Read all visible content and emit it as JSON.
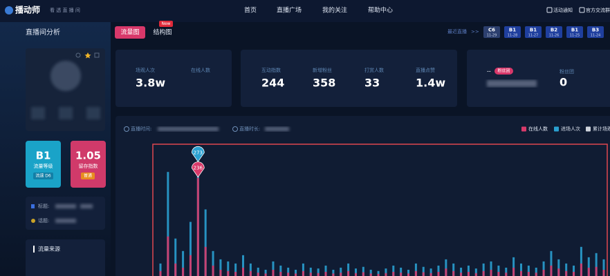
{
  "header": {
    "logo": "播动师",
    "slogan": "看 透 直 播 间",
    "nav": [
      "首页",
      "直播广场",
      "我的关注",
      "帮助中心"
    ],
    "actions": [
      "活动通知",
      "官方交流群"
    ]
  },
  "sidebar": {
    "title": "直播间分析",
    "level_card": {
      "value": "B1",
      "label": "流量等级",
      "tag": "流速 D6"
    },
    "retention_card": {
      "value": "1.05",
      "label": "留存指数",
      "tag": "普通"
    },
    "info": {
      "title_label": "标题:",
      "topic_label": "话题:"
    },
    "source_title": "流量来源"
  },
  "tabs": {
    "items": [
      "流量图",
      "结构图"
    ],
    "badge": "New"
  },
  "recent": {
    "label": "最近直播",
    "arrow": ">>",
    "sessions": [
      {
        "level": "C6",
        "date": "11-29"
      },
      {
        "level": "B1",
        "date": "11-28"
      },
      {
        "level": "B1",
        "date": "11-27"
      },
      {
        "level": "B2",
        "date": "11-26"
      },
      {
        "level": "B1",
        "date": "11-25"
      },
      {
        "level": "B3",
        "date": "11-24"
      }
    ]
  },
  "stats": {
    "viewers": [
      {
        "label": "场观人次",
        "value": "3.8w"
      },
      {
        "label": "在线人数"
      }
    ],
    "engagement": [
      {
        "label": "互动指数",
        "value": 244
      },
      {
        "label": "新增粉丝",
        "value": 358
      },
      {
        "label": "打赏人数",
        "value": 33
      },
      {
        "label": "直播点赞",
        "value": "1.4w"
      }
    ],
    "fans": {
      "level": "--",
      "badge": "粉丝团",
      "label": "粉丝团",
      "value": 0
    }
  },
  "chart": {
    "time_label": "直播时间:",
    "duration_label": "直播时长:",
    "extra_legend": "累计场观",
    "chart_data": {
      "type": "bar",
      "ylim": [
        0,
        315
      ],
      "series": [
        {
          "name": "在线人数",
          "color": "#d83a6a",
          "values": [
            12,
            95,
            30,
            20,
            50,
            236,
            70,
            25,
            15,
            12,
            10,
            20,
            12,
            8,
            6,
            15,
            10,
            8,
            6,
            12,
            8,
            7,
            10,
            6,
            8,
            12,
            7,
            9,
            6,
            5,
            7,
            10,
            8,
            6,
            12,
            9,
            7,
            10,
            18,
            12,
            8,
            10,
            7,
            12,
            15,
            10,
            8,
            20,
            12,
            10,
            8,
            15,
            25,
            18,
            12,
            10,
            30,
            20,
            22,
            15
          ]
        },
        {
          "name": "进场人次",
          "color": "#2aa0d0",
          "values": [
            30,
            250,
            90,
            60,
            130,
            273,
            160,
            60,
            40,
            35,
            30,
            50,
            30,
            20,
            15,
            35,
            25,
            20,
            15,
            30,
            20,
            18,
            25,
            15,
            20,
            30,
            18,
            22,
            15,
            12,
            18,
            25,
            20,
            15,
            30,
            22,
            18,
            25,
            40,
            30,
            20,
            25,
            18,
            30,
            35,
            25,
            20,
            45,
            30,
            25,
            20,
            35,
            60,
            40,
            30,
            25,
            70,
            45,
            55,
            40
          ]
        }
      ]
    }
  }
}
